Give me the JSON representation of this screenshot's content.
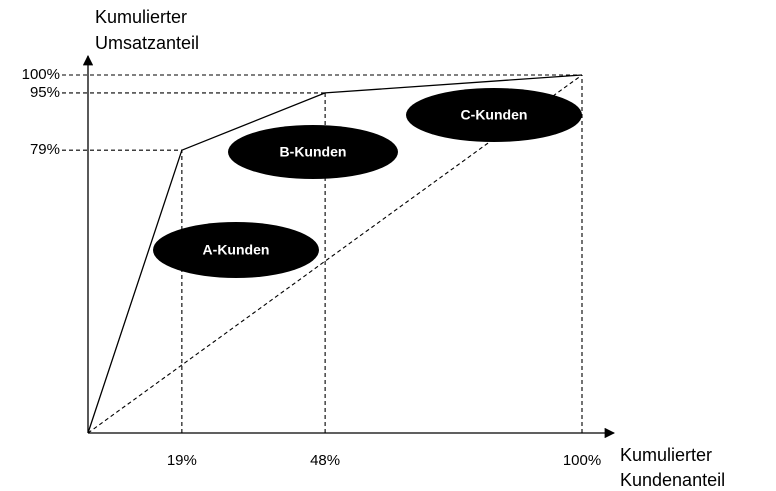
{
  "chart_data": {
    "type": "line",
    "xlabel": [
      "Kumulierter",
      "Kundenanteil"
    ],
    "ylabel": [
      "Kumulierter",
      "Umsatzanteil"
    ],
    "x": [
      0,
      19,
      48,
      100
    ],
    "series": [
      {
        "color": "#000000",
        "values": [
          0,
          79,
          95,
          100
        ]
      }
    ],
    "reference_line": {
      "x": [
        0,
        100
      ],
      "values": [
        0,
        100
      ]
    },
    "xlim": [
      0,
      100
    ],
    "ylim": [
      0,
      100
    ],
    "xticks": [
      {
        "value": 19,
        "label": "19%"
      },
      {
        "value": 48,
        "label": "48%"
      },
      {
        "value": 100,
        "label": "100%"
      }
    ],
    "yticks": [
      {
        "value": 79,
        "label": "79%"
      },
      {
        "value": 95,
        "label": "95%"
      },
      {
        "value": 100,
        "label": "100%"
      }
    ],
    "annotations": [
      "A-Kunden",
      "B-Kunden",
      "C-Kunden"
    ]
  }
}
